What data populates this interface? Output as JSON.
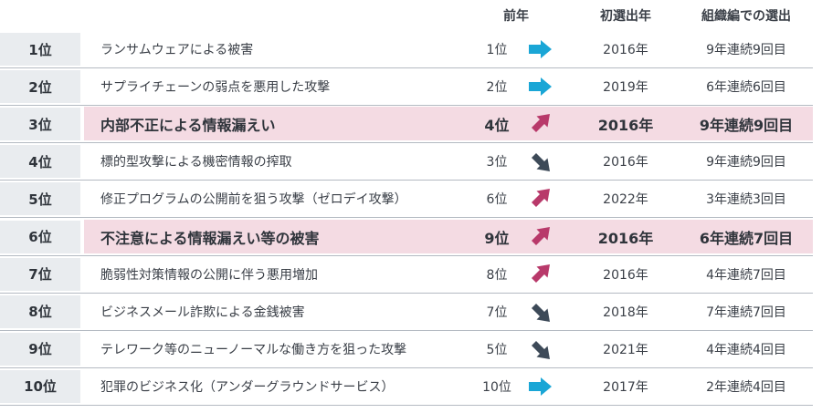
{
  "header": {
    "prev_year": "前年",
    "first_year": "初選出年",
    "consecutive": "組織編での選出"
  },
  "colors": {
    "up": "#b8396a",
    "down": "#3d4a58",
    "same": "#1aa6d6",
    "highlight": "#f4dbe3",
    "rank_bg": "#e9ecef"
  },
  "rows": [
    {
      "rank": "1位",
      "threat": "ランサムウェアによる被害",
      "prev": "1位",
      "trend": "same",
      "first_year": "2016年",
      "consecutive": "9年連続9回目",
      "highlight": false
    },
    {
      "rank": "2位",
      "threat": "サプライチェーンの弱点を悪用した攻撃",
      "prev": "2位",
      "trend": "same",
      "first_year": "2019年",
      "consecutive": "6年連続6回目",
      "highlight": false
    },
    {
      "rank": "3位",
      "threat": "内部不正による情報漏えい",
      "prev": "4位",
      "trend": "up",
      "first_year": "2016年",
      "consecutive": "9年連続9回目",
      "highlight": true
    },
    {
      "rank": "4位",
      "threat": "標的型攻撃による機密情報の搾取",
      "prev": "3位",
      "trend": "down",
      "first_year": "2016年",
      "consecutive": "9年連続9回目",
      "highlight": false
    },
    {
      "rank": "5位",
      "threat": "修正プログラムの公開前を狙う攻撃（ゼロデイ攻撃）",
      "prev": "6位",
      "trend": "up",
      "first_year": "2022年",
      "consecutive": "3年連続3回目",
      "highlight": false
    },
    {
      "rank": "6位",
      "threat": "不注意による情報漏えい等の被害",
      "prev": "9位",
      "trend": "up",
      "first_year": "2016年",
      "consecutive": "6年連続7回目",
      "highlight": true
    },
    {
      "rank": "7位",
      "threat": "脆弱性対策情報の公開に伴う悪用増加",
      "prev": "8位",
      "trend": "up",
      "first_year": "2016年",
      "consecutive": "4年連続7回目",
      "highlight": false
    },
    {
      "rank": "8位",
      "threat": "ビジネスメール詐欺による金銭被害",
      "prev": "7位",
      "trend": "down",
      "first_year": "2018年",
      "consecutive": "7年連続7回目",
      "highlight": false
    },
    {
      "rank": "9位",
      "threat": "テレワーク等のニューノーマルな働き方を狙った攻撃",
      "prev": "5位",
      "trend": "down",
      "first_year": "2021年",
      "consecutive": "4年連続4回目",
      "highlight": false
    },
    {
      "rank": "10位",
      "threat": "犯罪のビジネス化（アンダーグラウンドサービス）",
      "prev": "10位",
      "trend": "same",
      "first_year": "2017年",
      "consecutive": "2年連続4回目",
      "highlight": false
    }
  ]
}
